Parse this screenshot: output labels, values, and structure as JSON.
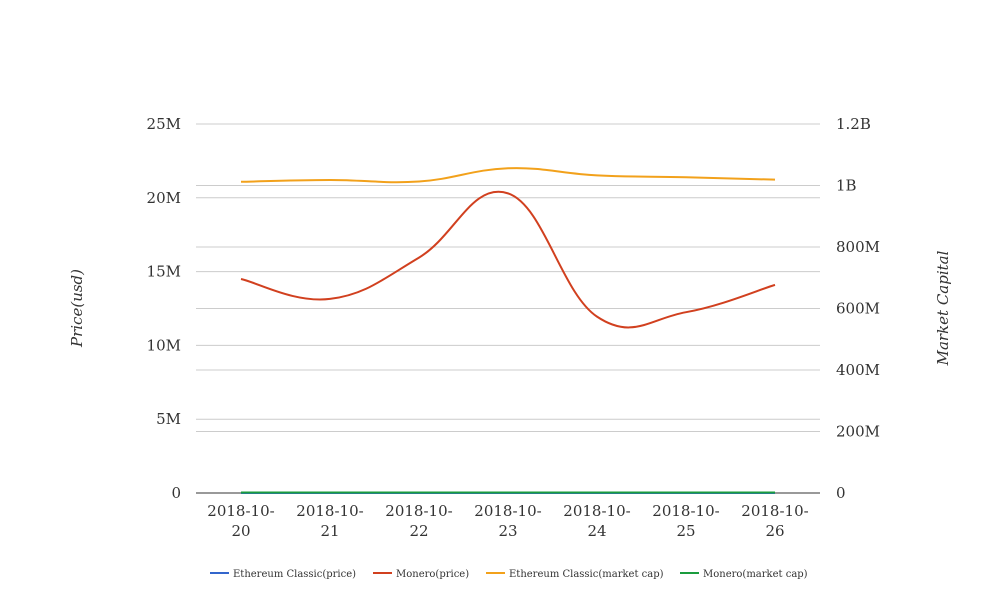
{
  "chart_data": {
    "type": "line",
    "categories": [
      "2018-10-20",
      "2018-10-21",
      "2018-10-22",
      "2018-10-23",
      "2018-10-24",
      "2018-10-25",
      "2018-10-26"
    ],
    "x_tick_lines": [
      [
        "2018-10-",
        "20"
      ],
      [
        "2018-10-",
        "21"
      ],
      [
        "2018-10-",
        "22"
      ],
      [
        "2018-10-",
        "23"
      ],
      [
        "2018-10-",
        "24"
      ],
      [
        "2018-10-",
        "25"
      ],
      [
        "2018-10-",
        "26"
      ]
    ],
    "ylabel": "Price(usd)",
    "y2label": "Market Capital",
    "ylim": [
      0,
      25000000
    ],
    "y2lim": [
      0,
      1200000000
    ],
    "y_ticks": [
      {
        "value": 0,
        "label": "0"
      },
      {
        "value": 5000000,
        "label": "5M"
      },
      {
        "value": 10000000,
        "label": "10M"
      },
      {
        "value": 15000000,
        "label": "15M"
      },
      {
        "value": 20000000,
        "label": "20M"
      },
      {
        "value": 25000000,
        "label": "25M"
      }
    ],
    "y2_ticks": [
      {
        "value": 0,
        "label": "0"
      },
      {
        "value": 200000000,
        "label": "200M"
      },
      {
        "value": 400000000,
        "label": "400M"
      },
      {
        "value": 600000000,
        "label": "600M"
      },
      {
        "value": 800000000,
        "label": "800M"
      },
      {
        "value": 1000000000,
        "label": "1B"
      },
      {
        "value": 1200000000,
        "label": "1.2B"
      }
    ],
    "grid": true,
    "legend_position": "bottom",
    "series": [
      {
        "name": "Ethereum Classic(price)",
        "axis": "left",
        "color": "#3366cc",
        "values": [
          9.5,
          9.6,
          9.7,
          9.9,
          9.6,
          9.5,
          9.4
        ]
      },
      {
        "name": "Monero(price)",
        "axis": "left",
        "color": "#d1401f",
        "values": [
          14500000,
          13150000,
          15950000,
          20300000,
          11950000,
          12250000,
          14100000
        ]
      },
      {
        "name": "Ethereum Classic(market cap)",
        "axis": "right",
        "color": "#f2a11b",
        "values": [
          1012000000,
          1018000000,
          1013000000,
          1056000000,
          1033000000,
          1027000000,
          1019000000
        ]
      },
      {
        "name": "Monero(market cap)",
        "axis": "right",
        "color": "#1a9c3e",
        "values": [
          1700000,
          1710000,
          1710000,
          1740000,
          1720000,
          1700000,
          1700000
        ]
      }
    ]
  }
}
